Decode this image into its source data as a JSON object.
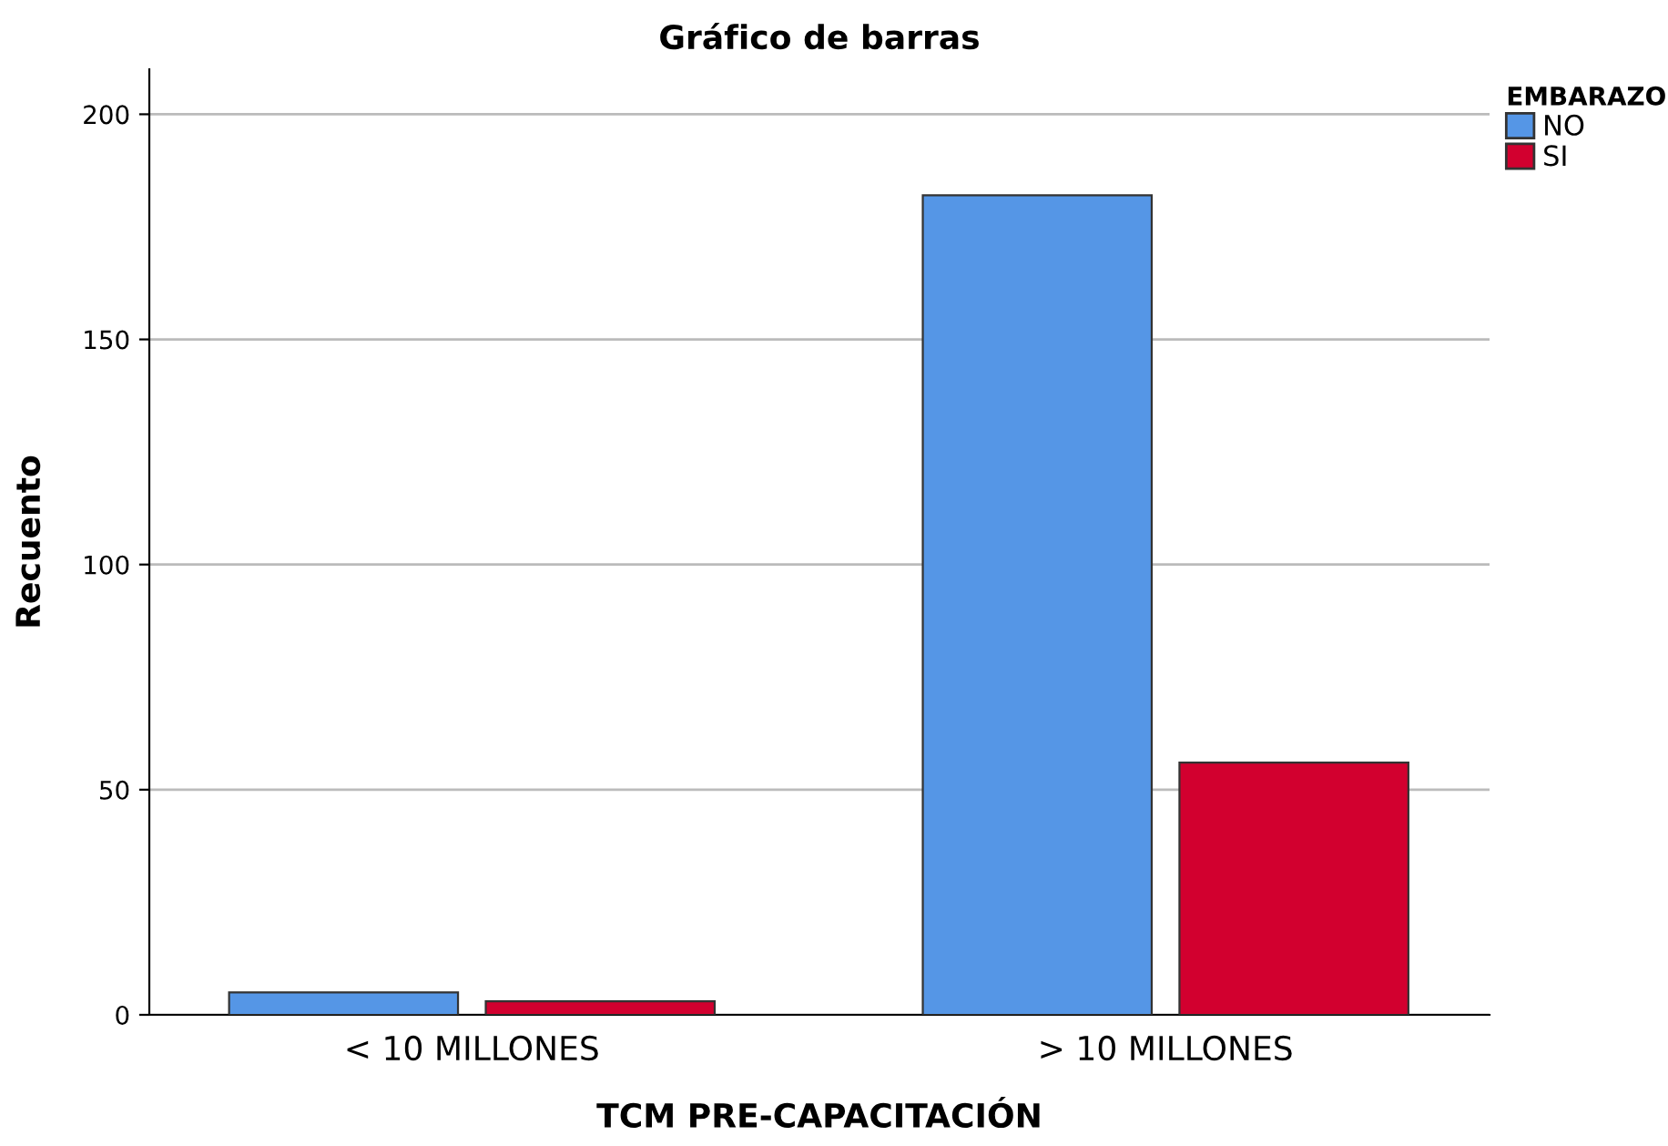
{
  "chart_data": {
    "type": "bar",
    "title": "Gráfico de barras",
    "xlabel": "TCM PRE-CAPACITACIÓN",
    "ylabel": "Recuento",
    "legend_title": "EMBARAZO",
    "categories": [
      "< 10 MILLONES",
      "> 10 MILLONES"
    ],
    "series": [
      {
        "name": "NO",
        "color": "#5596e6",
        "values": [
          5,
          182
        ]
      },
      {
        "name": "SI",
        "color": "#d2002f",
        "values": [
          3,
          56
        ]
      }
    ],
    "ylim": [
      0,
      210
    ],
    "yticks": [
      0,
      50,
      100,
      150,
      200
    ],
    "grid": "y",
    "legend": "top right"
  }
}
